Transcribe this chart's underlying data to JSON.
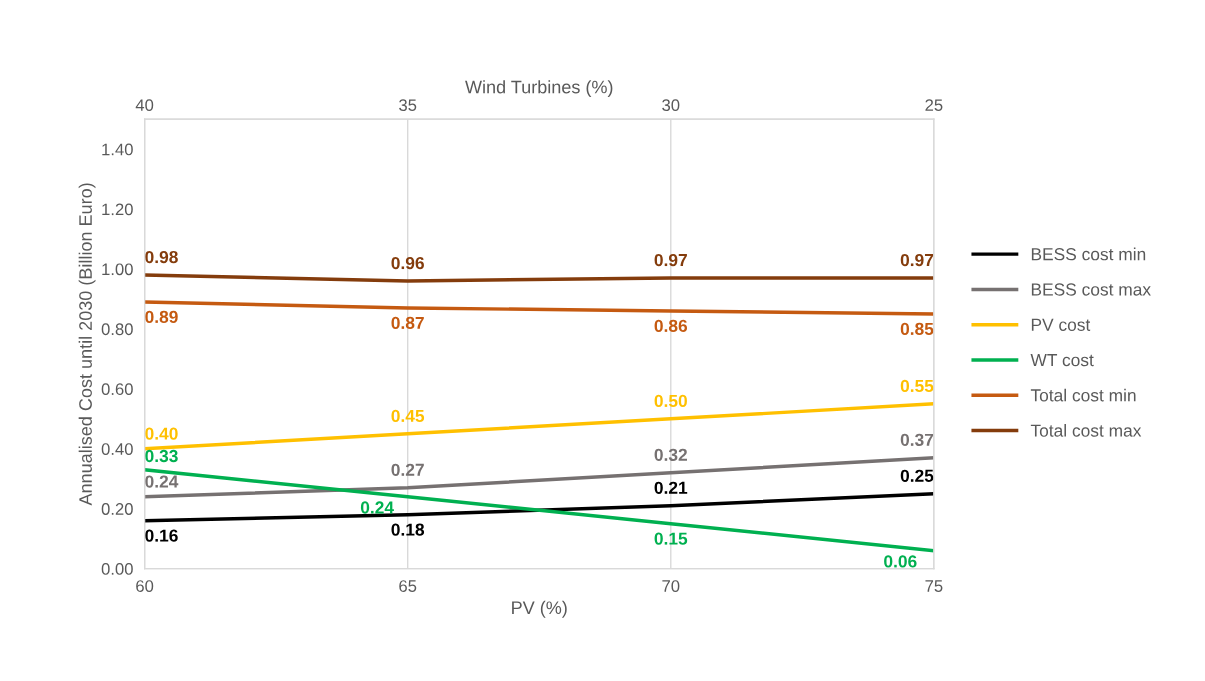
{
  "chart_data": {
    "type": "line",
    "xlabel": "PV (%)",
    "x2label": "Wind Turbines (%)",
    "ylabel": "Annualised Cost until 2030 (Billion Euro)",
    "x": [
      60,
      65,
      70,
      75
    ],
    "xlim": [
      60,
      75
    ],
    "xticks": [
      60,
      65,
      70,
      75
    ],
    "x2lim": [
      40,
      25
    ],
    "x2ticks": [
      40,
      35,
      30,
      25
    ],
    "ylim": [
      0,
      1.5
    ],
    "yticks": [
      {
        "value": 0,
        "label": "0.00"
      },
      {
        "value": 0.2,
        "label": "0.20"
      },
      {
        "value": 0.4,
        "label": "0.40"
      },
      {
        "value": 0.6,
        "label": "0.60"
      },
      {
        "value": 0.8,
        "label": "0.80"
      },
      {
        "value": 1.0,
        "label": "1.00"
      },
      {
        "value": 1.2,
        "label": "1.20"
      },
      {
        "value": 1.4,
        "label": "1.40"
      }
    ],
    "grid": "x",
    "legend": "right",
    "marker": "none",
    "line_style": "solid",
    "series": [
      {
        "name": "BESS cost min",
        "color": "#000000",
        "values": [
          0.16,
          0.18,
          0.21,
          0.25
        ],
        "value_labels": [
          "0.16",
          "0.18",
          "0.21",
          "0.25"
        ]
      },
      {
        "name": "BESS cost max",
        "color": "#767171",
        "values": [
          0.24,
          0.27,
          0.32,
          0.37
        ],
        "value_labels": [
          "0.24",
          "0.27",
          "0.32",
          "0.37"
        ]
      },
      {
        "name": "PV cost",
        "color": "#ffc000",
        "values": [
          0.4,
          0.45,
          0.5,
          0.55
        ],
        "value_labels": [
          "0.40",
          "0.45",
          "0.50",
          "0.55"
        ]
      },
      {
        "name": "WT cost",
        "color": "#00b050",
        "values": [
          0.33,
          0.24,
          0.15,
          0.06
        ],
        "value_labels": [
          "0.33",
          "0.24",
          "0.15",
          "0.06"
        ]
      },
      {
        "name": "Total cost min",
        "color": "#c55a11",
        "values": [
          0.89,
          0.87,
          0.86,
          0.85
        ],
        "value_labels": [
          "0.89",
          "0.87",
          "0.86",
          "0.85"
        ]
      },
      {
        "name": "Total cost max",
        "color": "#843c0c",
        "values": [
          0.98,
          0.96,
          0.97,
          0.97
        ],
        "value_labels": [
          "0.98",
          "0.96",
          "0.97",
          "0.97"
        ]
      }
    ]
  }
}
